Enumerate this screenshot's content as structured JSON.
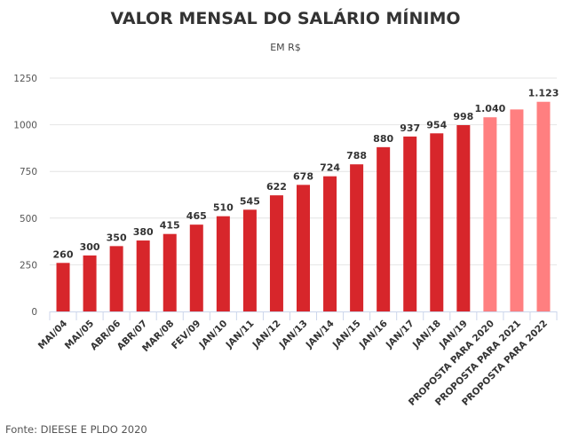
{
  "chart_data": {
    "type": "bar",
    "title": "VALOR MENSAL DO SALÁRIO MÍNIMO",
    "subtitle": "EM R$",
    "source": "Fonte: DIEESE E PLDO 2020",
    "categories": [
      "MAI/04",
      "MAI/05",
      "ABR/06",
      "ABR/07",
      "MAR/08",
      "FEV/09",
      "JAN/10",
      "JAN/11",
      "JAN/12",
      "JAN/13",
      "JAN/14",
      "JAN/15",
      "JAN/16",
      "JAN/17",
      "JAN/18",
      "JAN/19",
      "PROPOSTA PARA 2020",
      "PROPOSTA PARA 2021",
      "PROPOSTA PARA 2022"
    ],
    "values": [
      260,
      300,
      350,
      380,
      415,
      465,
      510,
      545,
      622,
      678,
      724,
      788,
      880,
      937,
      954,
      998,
      1040,
      1082,
      1123
    ],
    "data_labels": [
      "260",
      "300",
      "350",
      "380",
      "415",
      "465",
      "510",
      "545",
      "622",
      "678",
      "724",
      "788",
      "880",
      "937",
      "954",
      "998",
      "1.040",
      "",
      "1.123"
    ],
    "ylim": [
      0,
      1250
    ],
    "yticks": [
      0,
      250,
      500,
      750,
      1000,
      1250
    ],
    "grid": true,
    "colors": {
      "actual": "#d7262b",
      "proposal": "#ff7f80"
    },
    "proposal_from_index": 16
  }
}
